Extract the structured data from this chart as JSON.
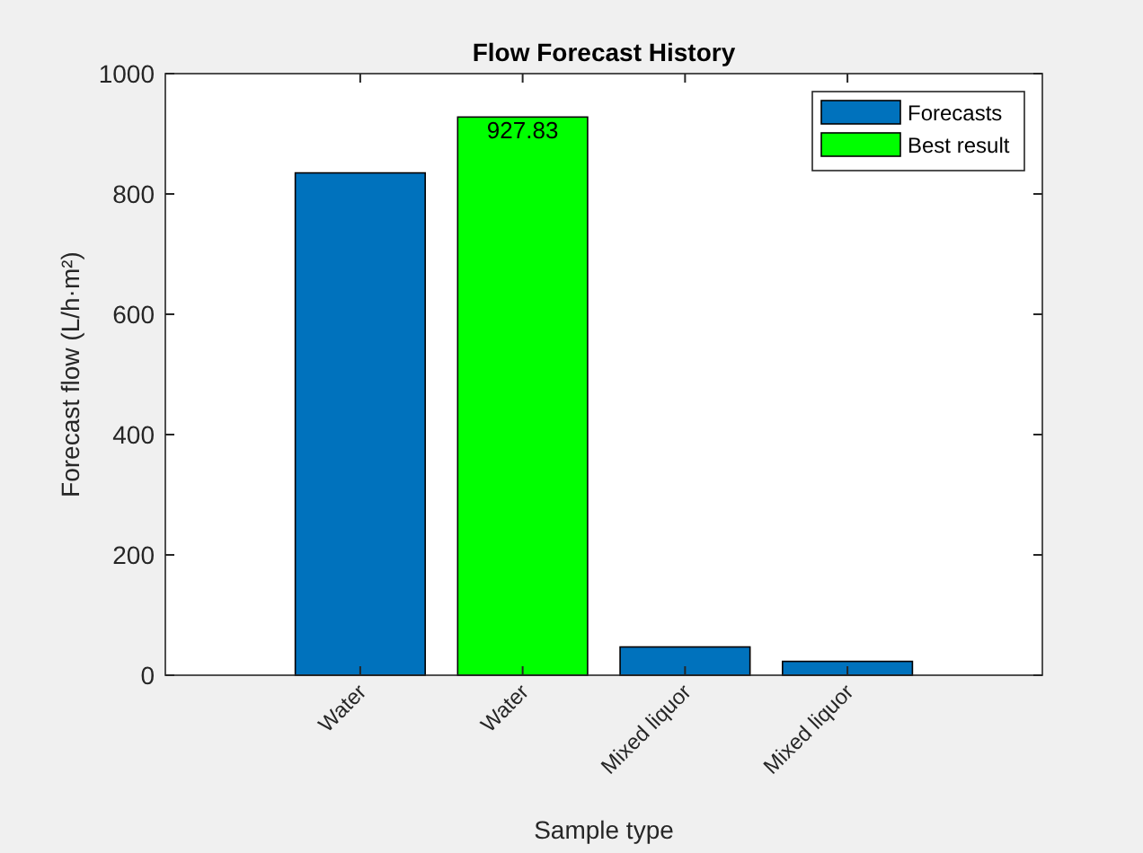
{
  "chart_data": {
    "type": "bar",
    "title": "Flow Forecast History",
    "xlabel": "Sample type",
    "ylabel": "Forecast flow (L/h·m²)",
    "categories": [
      "Water",
      "Water",
      "Mixed liquor",
      "Mixed liquor"
    ],
    "series": [
      {
        "name": "Forecasts",
        "color": "#0072bd",
        "values": [
          835,
          null,
          47,
          23
        ]
      },
      {
        "name": "Best result",
        "color": "#00ff00",
        "values": [
          null,
          927.83,
          null,
          null
        ],
        "value_labels": [
          null,
          "927.83",
          null,
          null
        ]
      }
    ],
    "ylim": [
      0,
      1000
    ],
    "yticks": [
      0,
      200,
      400,
      600,
      800,
      1000
    ],
    "grid": false,
    "legend": "top right"
  }
}
